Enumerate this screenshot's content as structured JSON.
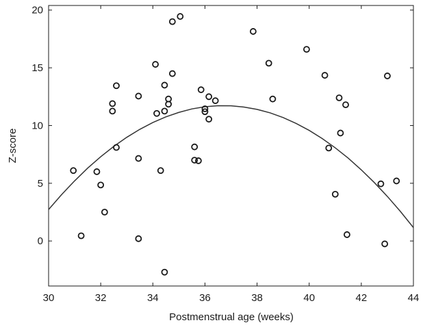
{
  "chart_data": {
    "type": "scatter",
    "xlabel": "Postmenstrual age (weeks)",
    "ylabel": "Z-score",
    "xlim": [
      30,
      44
    ],
    "ylim": [
      -3.9,
      20.4
    ],
    "xticks": [
      30,
      32,
      34,
      36,
      38,
      40,
      42,
      44
    ],
    "yticks": [
      0,
      5,
      10,
      15,
      20
    ],
    "grid": false,
    "legend": "none",
    "colors": {
      "marker": "#1a1a1a",
      "curve": "#333333",
      "axis": "#1a1a1a"
    },
    "series": [
      {
        "kind": "points",
        "x": [
          30.95,
          31.25,
          31.85,
          32.0,
          32.15,
          32.45,
          32.45,
          32.6,
          32.6,
          33.45,
          33.45,
          33.45,
          34.1,
          34.15,
          34.3,
          34.45,
          34.45,
          34.45,
          34.6,
          34.6,
          34.75,
          34.75,
          35.05,
          35.6,
          35.6,
          35.75,
          35.85,
          36.0,
          36.0,
          36.15,
          36.15,
          36.4,
          37.85,
          38.45,
          38.6,
          39.9,
          40.6,
          40.75,
          41.0,
          41.15,
          41.2,
          41.4,
          41.45,
          42.75,
          42.9,
          43.0,
          43.35
        ],
        "y": [
          6.1,
          0.45,
          6.0,
          4.85,
          2.5,
          11.9,
          11.25,
          8.1,
          13.45,
          12.55,
          7.15,
          0.2,
          15.3,
          11.05,
          6.1,
          13.5,
          11.25,
          -2.7,
          12.3,
          11.85,
          19.0,
          14.5,
          19.45,
          8.15,
          7.0,
          6.95,
          13.1,
          11.45,
          11.2,
          12.5,
          10.55,
          12.15,
          18.15,
          15.4,
          12.3,
          16.6,
          14.35,
          8.05,
          4.05,
          12.4,
          9.35,
          11.8,
          0.55,
          4.95,
          -0.25,
          14.3,
          5.2
        ]
      },
      {
        "kind": "fit",
        "x": [
          30.0,
          30.5,
          31.0,
          31.5,
          32.0,
          32.5,
          33.0,
          33.5,
          34.0,
          34.5,
          35.0,
          35.5,
          36.0,
          36.5,
          37.0,
          37.5,
          38.0,
          38.5,
          39.0,
          39.5,
          40.0,
          40.5,
          41.0,
          41.5,
          42.0,
          42.5,
          43.0,
          43.5,
          44.0
        ],
        "y": [
          2.72,
          4.02,
          5.21,
          6.31,
          7.3,
          8.19,
          8.98,
          9.67,
          10.26,
          10.75,
          11.14,
          11.44,
          11.63,
          11.72,
          11.71,
          11.6,
          11.4,
          11.1,
          10.69,
          10.18,
          9.58,
          8.87,
          8.07,
          7.17,
          6.16,
          5.06,
          3.86,
          2.56,
          1.16
        ]
      }
    ]
  }
}
